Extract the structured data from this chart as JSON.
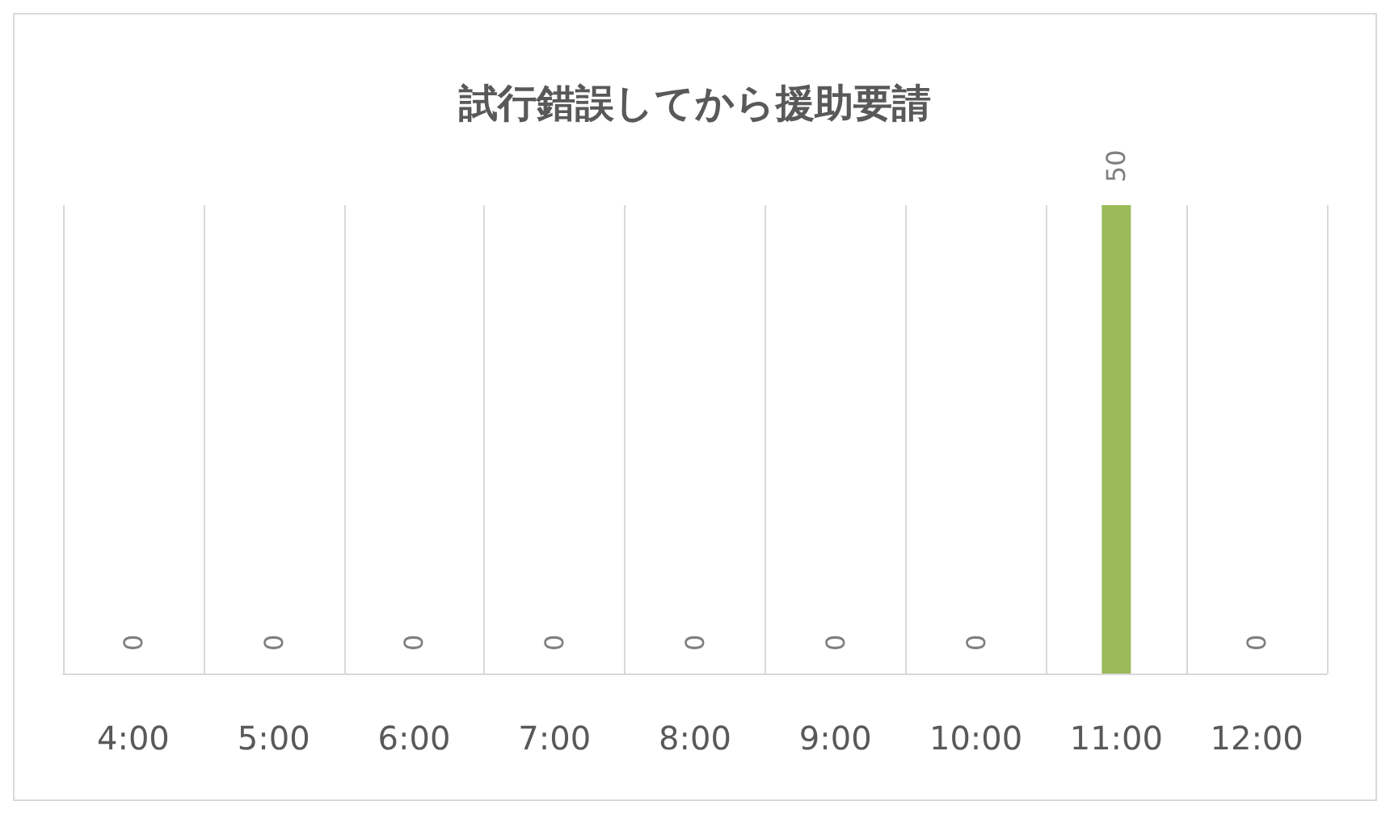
{
  "chart_data": {
    "type": "bar",
    "title": "試行錯誤してから援助要請",
    "categories": [
      "4:00",
      "5:00",
      "6:00",
      "7:00",
      "8:00",
      "9:00",
      "10:00",
      "11:00",
      "12:00"
    ],
    "values": [
      0,
      0,
      0,
      0,
      0,
      0,
      0,
      50,
      0
    ],
    "color": "#9bbb59",
    "data_labels": true,
    "grid": "x"
  }
}
